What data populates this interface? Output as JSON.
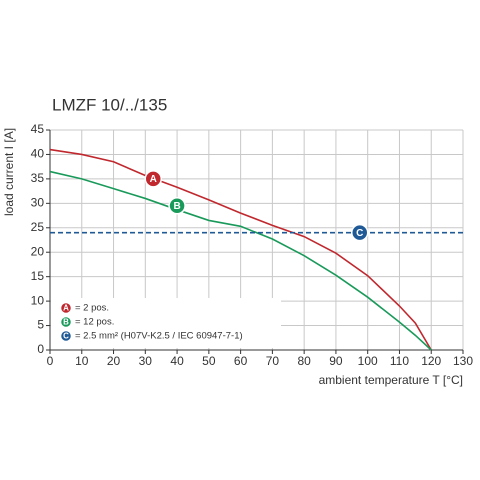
{
  "chart_data": {
    "type": "line",
    "title": "LMZF 10/../135",
    "x_label": "ambient temperature T [°C]",
    "y_label": "load current I [A]",
    "xlim": [
      0,
      130
    ],
    "ylim": [
      0,
      45
    ],
    "xticks": [
      0,
      10,
      20,
      30,
      40,
      50,
      60,
      70,
      80,
      90,
      100,
      110,
      120,
      130
    ],
    "yticks": [
      0,
      5,
      10,
      15,
      20,
      25,
      30,
      35,
      40,
      45
    ],
    "grid": true,
    "series": [
      {
        "marker": "A",
        "name": "= 2 pos.",
        "color": "#c0282e",
        "dashed": false,
        "x": [
          0,
          10,
          20,
          30,
          40,
          50,
          60,
          70,
          80,
          90,
          100,
          110,
          115,
          120
        ],
        "values": [
          41,
          40,
          38.5,
          35.7,
          33.3,
          30.7,
          28,
          25.5,
          23.2,
          19.8,
          15.2,
          9,
          5.5,
          0
        ],
        "marker_at": [
          32.5,
          35
        ]
      },
      {
        "marker": "B",
        "name": "= 12 pos.",
        "color": "#1a9a5a",
        "dashed": false,
        "x": [
          0,
          10,
          20,
          30,
          40,
          50,
          60,
          70,
          80,
          90,
          100,
          110,
          115,
          120
        ],
        "values": [
          36.5,
          35,
          33,
          31,
          28.7,
          26.5,
          25.3,
          22.7,
          19.3,
          15.3,
          10.8,
          5.7,
          3,
          0
        ],
        "marker_at": [
          40,
          29.5
        ]
      },
      {
        "marker": "C",
        "name": "= 2.5 mm² (H07V-K2.5 / IEC 60947-7-1)",
        "color": "#1f5a96",
        "dashed": true,
        "x": [
          0,
          130
        ],
        "values": [
          24,
          24
        ],
        "marker_at": [
          97.5,
          24
        ]
      }
    ]
  }
}
